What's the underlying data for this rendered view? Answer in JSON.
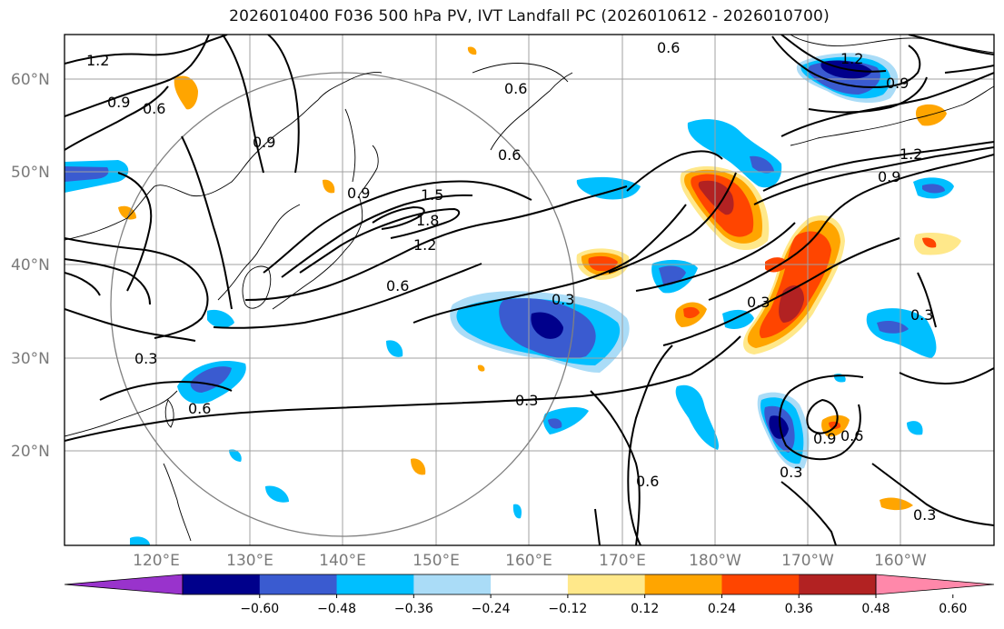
{
  "title": "2026010400 F036 500 hPa PV, IVT Landfall PC (2026010612 - 2026010700)",
  "latitude_labels": [
    "60°N",
    "50°N",
    "40°N",
    "30°N",
    "20°N"
  ],
  "longitude_labels": [
    "120°E",
    "130°E",
    "140°E",
    "150°E",
    "160°E",
    "170°E",
    "180°W",
    "170°W",
    "160°W"
  ],
  "contour_labels": [
    "1.2",
    "0.9",
    "0.6",
    "0.9",
    "0.6",
    "1.5",
    "1.8",
    "1.2",
    "0.6",
    "0.6",
    "0.3",
    "0.3",
    "0.6",
    "0.3",
    "0.6",
    "0.6",
    "1.2",
    "0.9",
    "1.2",
    "0.9",
    "0.3",
    "0.3",
    "0.9",
    "0.6",
    "0.3",
    "0.3",
    "0.9"
  ],
  "colorbar": {
    "ticks": [
      "−0.60",
      "−0.48",
      "−0.36",
      "−0.24",
      "−0.12",
      "0.12",
      "0.24",
      "0.36",
      "0.48",
      "0.60"
    ],
    "colors": [
      "#9933cc",
      "#00008b",
      "#3a5bd0",
      "#00bfff",
      "#aadcf7",
      "#ffffff",
      "#ffe88a",
      "#ffa500",
      "#ff4500",
      "#b22222",
      "#ff88aa"
    ]
  },
  "fill_colors": {
    "neg_strong": "#00008b",
    "neg_mid": "#3a5bd0",
    "neg_weak": "#00bfff",
    "neg_faint": "#aadcf7",
    "pos_faint": "#ffe88a",
    "pos_weak": "#ffa500",
    "pos_mid": "#ff4500",
    "pos_strong": "#b22222"
  }
}
